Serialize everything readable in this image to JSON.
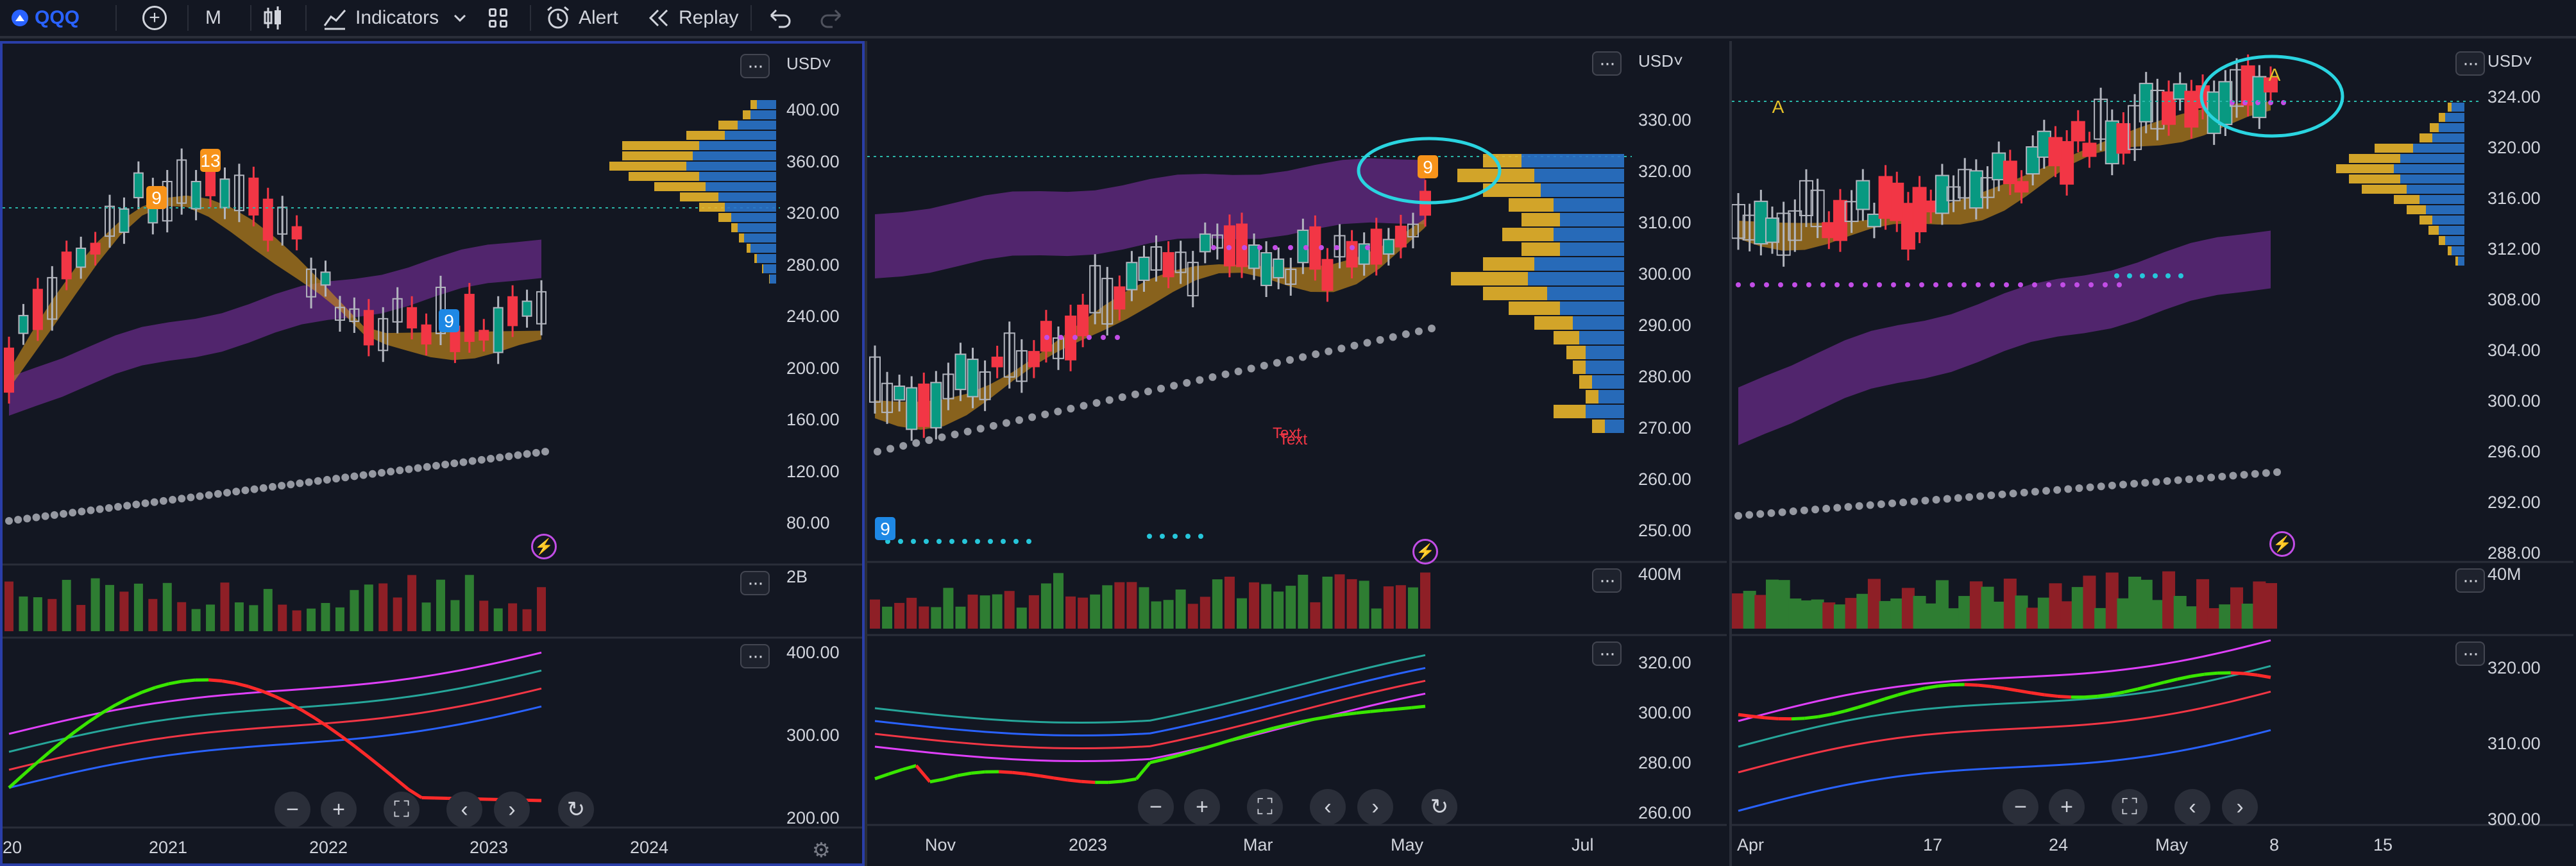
{
  "toolbar": {
    "symbol": "QQQ",
    "interval": "M",
    "indicators_label": "Indicators",
    "alert_label": "Alert",
    "replay_label": "Replay"
  },
  "colors": {
    "background": "#131722",
    "up_candle": "#089981",
    "down_candle": "#f23645",
    "orange_cloud": "#c88a1c",
    "purple_cloud": "#7b2fa0",
    "volume_profile_buy": "#2a73c9",
    "volume_profile_sell": "#e8b42a",
    "highlight_circle": "#2ad4e0",
    "lightning": "#c24de6"
  },
  "icons": [
    "logo-icon",
    "plus-circle-icon",
    "candles-icon",
    "indicators-icon",
    "chevron-down-icon",
    "layout-grid-icon",
    "alert-clock-icon",
    "replay-icon",
    "undo-icon",
    "redo-icon",
    "more-dots-icon",
    "zoom-out-icon",
    "zoom-in-icon",
    "fullscreen-icon",
    "chevron-left-icon",
    "chevron-right-icon",
    "reset-icon",
    "lightning-icon",
    "gear-icon"
  ],
  "panes": [
    {
      "currency": "USD",
      "price_axis": [
        "400.00",
        "360.00",
        "320.00",
        "280.00",
        "240.00",
        "200.00",
        "160.00",
        "120.00",
        "80.00"
      ],
      "volume_axis": [
        "2B"
      ],
      "osc_axis": [
        "400.00",
        "300.00",
        "200.00"
      ],
      "time_axis": [
        "20",
        "2021",
        "2022",
        "2023",
        "2024"
      ],
      "markers": [
        "9",
        "13",
        "9"
      ]
    },
    {
      "currency": "USD",
      "price_axis": [
        "330.00",
        "320.00",
        "310.00",
        "300.00",
        "290.00",
        "280.00",
        "270.00",
        "260.00",
        "250.00"
      ],
      "volume_axis": [
        "400M"
      ],
      "osc_axis": [
        "320.00",
        "300.00",
        "280.00",
        "260.00"
      ],
      "time_axis": [
        "Nov",
        "2023",
        "Mar",
        "May",
        "Jul"
      ],
      "markers": [
        "9",
        "9"
      ],
      "annotation": "Text",
      "annotation_2": "Text"
    },
    {
      "currency": "USD",
      "price_axis": [
        "324.00",
        "320.00",
        "316.00",
        "312.00",
        "308.00",
        "304.00",
        "300.00",
        "296.00",
        "292.00",
        "288.00"
      ],
      "volume_axis": [
        "40M"
      ],
      "osc_axis": [
        "320.00",
        "310.00",
        "300.00"
      ],
      "time_axis": [
        "Apr",
        "17",
        "24",
        "May",
        "8",
        "15"
      ],
      "markers": [
        "A",
        "A"
      ]
    }
  ]
}
